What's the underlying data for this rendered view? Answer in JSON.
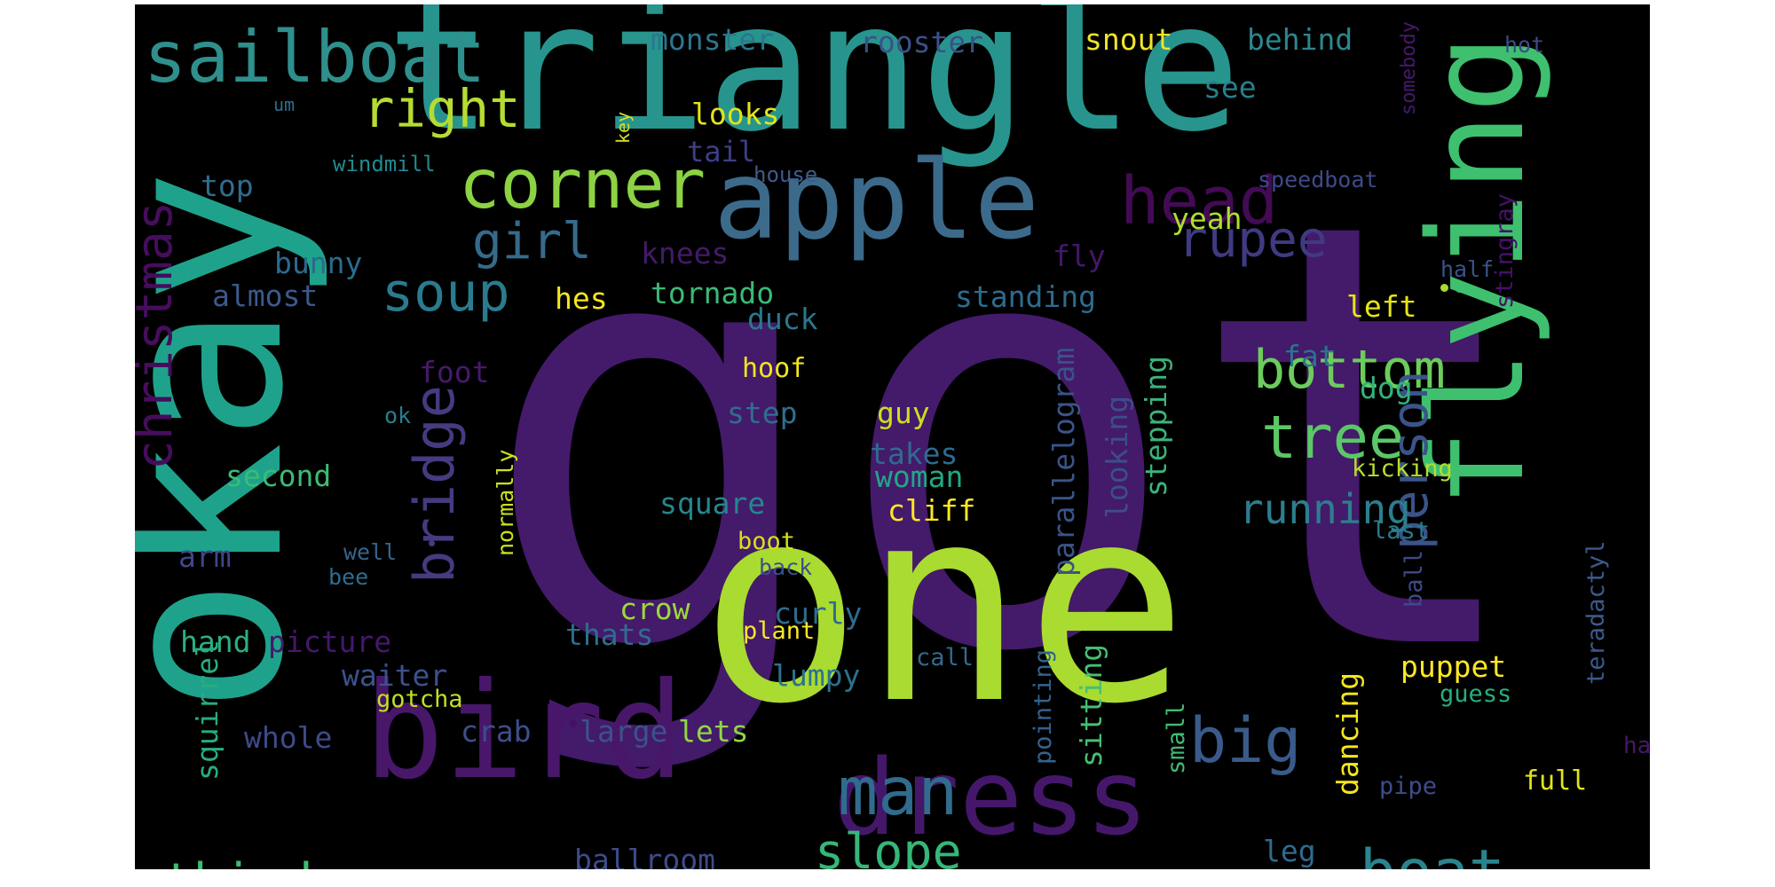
{
  "wordcloud": {
    "words": [
      {
        "text": "got",
        "color": "#441a6a"
      },
      {
        "text": "okay",
        "color": "#1fa28b"
      },
      {
        "text": "triangle",
        "color": "#27958d"
      },
      {
        "text": "one",
        "color": "#a9db31"
      },
      {
        "text": "bird",
        "color": "#48176a"
      },
      {
        "text": "flying",
        "color": "#3ec06f"
      },
      {
        "text": "apple",
        "color": "#3c6a8b"
      },
      {
        "text": "dress",
        "color": "#45176a"
      },
      {
        "text": "sailboat",
        "color": "#2f8f8c"
      },
      {
        "text": "corner",
        "color": "#8cd243"
      },
      {
        "text": "head",
        "color": "#430b54"
      },
      {
        "text": "bridge",
        "color": "#453b80"
      },
      {
        "text": "christmas",
        "color": "#460d5c"
      },
      {
        "text": "right",
        "color": "#b6dc32"
      },
      {
        "text": "girl",
        "color": "#356a8b"
      },
      {
        "text": "soup",
        "color": "#2a7b8e"
      },
      {
        "text": "rupee",
        "color": "#403a82"
      },
      {
        "text": "bottom",
        "color": "#6ccc5c"
      },
      {
        "text": "tree",
        "color": "#5ac866"
      },
      {
        "text": "big",
        "color": "#3a5a8b"
      },
      {
        "text": "man",
        "color": "#306c8e"
      },
      {
        "text": "person",
        "color": "#3a548a"
      },
      {
        "text": "running",
        "color": "#2d7e8e"
      },
      {
        "text": "boat",
        "color": "#2a848d"
      },
      {
        "text": "slope",
        "color": "#35b779"
      },
      {
        "text": "third",
        "color": "#3fbc73"
      },
      {
        "text": "monster",
        "color": "#2b768e"
      },
      {
        "text": "rooster",
        "color": "#3b5189"
      },
      {
        "text": "snout",
        "color": "#f0e327"
      },
      {
        "text": "behind",
        "color": "#2c878e"
      },
      {
        "text": "somebody",
        "color": "#46196c"
      },
      {
        "text": "hot",
        "color": "#3e4989"
      },
      {
        "text": "um",
        "color": "#2c6e8e"
      },
      {
        "text": "key",
        "color": "#d6e023"
      },
      {
        "text": "looks",
        "color": "#e2e419"
      },
      {
        "text": "see",
        "color": "#2a7f8e"
      },
      {
        "text": "tail",
        "color": "#3d3f87"
      },
      {
        "text": "windmill",
        "color": "#23888e"
      },
      {
        "text": "house",
        "color": "#3e5b8d"
      },
      {
        "text": "top",
        "color": "#2f6e8e"
      },
      {
        "text": "speedboat",
        "color": "#3e4a89"
      },
      {
        "text": "stingray",
        "color": "#46106a"
      },
      {
        "text": "yeah",
        "color": "#ace02b"
      },
      {
        "text": "fly",
        "color": "#43186a"
      },
      {
        "text": "bunny",
        "color": "#2a6b8e"
      },
      {
        "text": "knees",
        "color": "#441a6a"
      },
      {
        "text": "half",
        "color": "#3b528b"
      },
      {
        "text": "almost",
        "color": "#3b598c"
      },
      {
        "text": "hes",
        "color": "#f4e61e"
      },
      {
        "text": "tornado",
        "color": "#3aba76"
      },
      {
        "text": "standing",
        "color": "#2e6b8e"
      },
      {
        "text": "left",
        "color": "#e5e419"
      },
      {
        "text": "duck",
        "color": "#2a788e"
      },
      {
        "text": "fat",
        "color": "#2c728e"
      },
      {
        "text": "foot",
        "color": "#48196b"
      },
      {
        "text": "hoof",
        "color": "#f1e51d"
      },
      {
        "text": "parallelogram",
        "color": "#3a5489"
      },
      {
        "text": "dog",
        "color": "#2fb47c"
      },
      {
        "text": "ok",
        "color": "#2b7c8e"
      },
      {
        "text": "step",
        "color": "#2e6f8e"
      },
      {
        "text": "guy",
        "color": "#c9e020"
      },
      {
        "text": "looking",
        "color": "#3c4e8a"
      },
      {
        "text": "stepping",
        "color": "#3ab47a"
      },
      {
        "text": "second",
        "color": "#3cbb75"
      },
      {
        "text": "takes",
        "color": "#2f6b8e"
      },
      {
        "text": "normally",
        "color": "#cde11d"
      },
      {
        "text": "woman",
        "color": "#22a785"
      },
      {
        "text": "kicking",
        "color": "#b5de2b"
      },
      {
        "text": "square",
        "color": "#24878e"
      },
      {
        "text": "cliff",
        "color": "#fde725"
      },
      {
        "text": "arm",
        "color": "#3f4788"
      },
      {
        "text": "last",
        "color": "#2a798e"
      },
      {
        "text": "well",
        "color": "#37648c"
      },
      {
        "text": "boot",
        "color": "#d4e21a"
      },
      {
        "text": "bee",
        "color": "#2e6d8e"
      },
      {
        "text": "back",
        "color": "#3c4f8a"
      },
      {
        "text": "ball",
        "color": "#3e4989"
      },
      {
        "text": "teradactyl",
        "color": "#3b5a8c"
      },
      {
        "text": "curly",
        "color": "#2f6c8e"
      },
      {
        "text": "crow",
        "color": "#9dd93b"
      },
      {
        "text": "thats",
        "color": "#2e6d8e"
      },
      {
        "text": "hand",
        "color": "#2bb07f"
      },
      {
        "text": "picture",
        "color": "#44196b"
      },
      {
        "text": "plant",
        "color": "#fde725"
      },
      {
        "text": "squirrel",
        "color": "#27ad81"
      },
      {
        "text": "waiter",
        "color": "#3b528b"
      },
      {
        "text": "call",
        "color": "#306a8e"
      },
      {
        "text": "lumpy",
        "color": "#2c728e"
      },
      {
        "text": "puppet",
        "color": "#fde725"
      },
      {
        "text": "sitting",
        "color": "#45bf70"
      },
      {
        "text": "pointing",
        "color": "#33628d"
      },
      {
        "text": "dancing",
        "color": "#f4e61e"
      },
      {
        "text": "gotcha",
        "color": "#c2df23"
      },
      {
        "text": "guess",
        "color": "#27ad81"
      },
      {
        "text": "small",
        "color": "#3fbc73"
      },
      {
        "text": "whole",
        "color": "#3e4a89"
      },
      {
        "text": "crab",
        "color": "#3d4e8a"
      },
      {
        "text": "large",
        "color": "#3b528b"
      },
      {
        "text": "lets",
        "color": "#8fd744"
      },
      {
        "text": "hat",
        "color": "#481769"
      },
      {
        "text": "full",
        "color": "#e2e418"
      },
      {
        "text": "pipe",
        "color": "#3e4c8a"
      },
      {
        "text": "ballroom",
        "color": "#3e4c8a"
      },
      {
        "text": "leg",
        "color": "#2f6b8e"
      }
    ],
    "dots": [
      {
        "name": "dot-1",
        "color": "#a8db34"
      },
      {
        "name": "dot-2",
        "color": "#3ec06f"
      },
      {
        "name": "dot-3",
        "color": "#453b80"
      },
      {
        "name": "dot-4",
        "color": "#46106a"
      }
    ]
  }
}
